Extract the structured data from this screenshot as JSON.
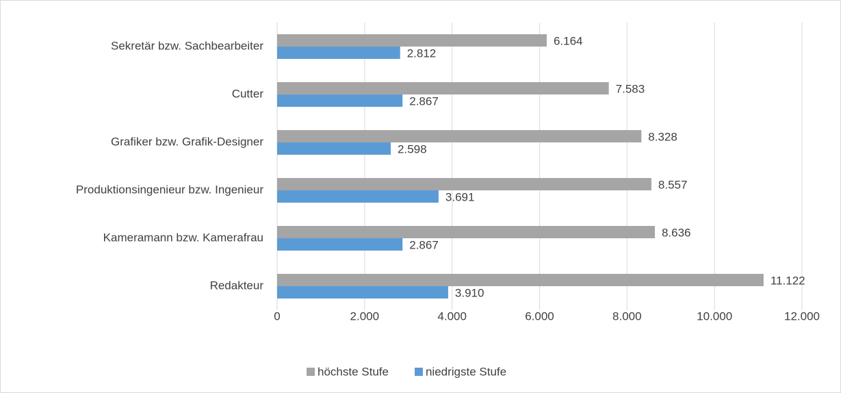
{
  "chart_data": {
    "type": "hbar",
    "categories": [
      "Sekretär bzw. Sachbearbeiter",
      "Cutter",
      "Grafiker bzw. Grafik-Designer",
      "Produktionsingenieur bzw. Ingenieur",
      "Kameramann bzw. Kamerafrau",
      "Redakteur"
    ],
    "series": [
      {
        "name": "höchste Stufe",
        "color": "#a5a5a5",
        "values": [
          6164,
          7583,
          8328,
          8557,
          8636,
          11122
        ],
        "value_labels": [
          "6.164",
          "7.583",
          "8.328",
          "8.557",
          "8.636",
          "11.122"
        ]
      },
      {
        "name": "niedrigste Stufe",
        "color": "#5b9bd5",
        "values": [
          2812,
          2867,
          2598,
          3691,
          2867,
          3910
        ],
        "value_labels": [
          "2.812",
          "2.867",
          "2.598",
          "3.691",
          "2.867",
          "3.910"
        ]
      }
    ],
    "xlim": [
      0,
      12000
    ],
    "xticks": [
      0,
      {
        "value": 2000,
        "label": "2.000"
      },
      {
        "value": 4000,
        "label": "4.000"
      },
      {
        "value": 6000,
        "label": "6.000"
      },
      {
        "value": 8000,
        "label": "8.000"
      },
      {
        "value": 10000,
        "label": "10.000"
      },
      {
        "value": 12000,
        "label": "12.000"
      }
    ],
    "grid": true,
    "legend": "bottom"
  }
}
